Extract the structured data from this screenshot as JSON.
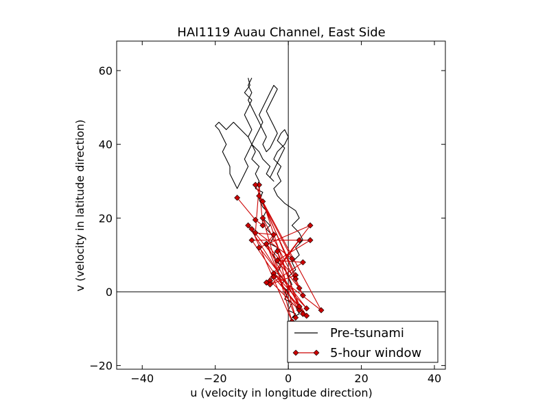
{
  "chart_data": {
    "type": "line",
    "title": "HAI1119   Auau Channel, East Side",
    "xlabel": "u (velocity in longitude direction)",
    "ylabel": "v (velocity in latitude direction)",
    "xlim": [
      -47,
      43
    ],
    "ylim": [
      -21,
      68
    ],
    "xticks": [
      -40,
      -20,
      0,
      20,
      40
    ],
    "yticks": [
      -20,
      0,
      20,
      40,
      60
    ],
    "grid": false,
    "reference_lines": {
      "x": 0,
      "y": 0
    },
    "legend": {
      "position": "lower-right",
      "entries": [
        "Pre-tsunami",
        "5-hour window"
      ]
    },
    "series": [
      {
        "name": "Pre-tsunami",
        "color": "#000000",
        "marker": "none",
        "x": [
          -11,
          -10.5,
          -12,
          -10,
          -11,
          -12,
          -11,
          -10,
          -11,
          -10,
          -9,
          -10,
          -8,
          -9,
          -8,
          -9,
          -7,
          -8,
          -7,
          -6,
          -7,
          -5,
          -6,
          -4,
          -5,
          -3,
          -4,
          -3,
          -2,
          -3,
          -1,
          -2,
          0,
          -1,
          1,
          0,
          2,
          1,
          3,
          2,
          1,
          0,
          -1,
          1,
          0,
          2,
          1,
          3,
          2,
          4,
          3,
          1,
          3,
          2,
          -1,
          -3,
          -4,
          -2,
          -3,
          -2,
          -4,
          -3,
          -1,
          0,
          -1,
          -2,
          -3,
          -1,
          -2,
          -3,
          -4,
          -5,
          -4,
          -6,
          -5,
          -7,
          -8,
          -10,
          -11,
          -12,
          -13,
          -14,
          -15,
          -16,
          -17,
          -18,
          -19,
          -20,
          -19,
          -18,
          -17,
          -18,
          -17,
          -16,
          -16,
          -15,
          -14,
          -13,
          -12,
          -11,
          -12,
          -11,
          -10,
          -9,
          -8,
          -7,
          -8,
          -7,
          -6,
          -5,
          -4,
          -3,
          -4,
          -5,
          -6,
          -5,
          -4,
          -3,
          -4,
          -5,
          -6,
          -7,
          -6,
          -7,
          -8,
          -9,
          -10,
          -11,
          -10,
          -11,
          -10
        ],
        "y": [
          58,
          56,
          54,
          52,
          50,
          48,
          46,
          44,
          42,
          40,
          38,
          36,
          34,
          32,
          30,
          28,
          27,
          25,
          23,
          22,
          20,
          18,
          17,
          15,
          13,
          12,
          10,
          8,
          7,
          5,
          3,
          2,
          0,
          -2,
          -3,
          -5,
          -6,
          -7,
          -6,
          -4,
          -3,
          -2,
          0,
          2,
          4,
          6,
          8,
          10,
          12,
          14,
          16,
          18,
          20,
          22,
          24,
          26,
          28,
          30,
          32,
          34,
          36,
          38,
          40,
          42,
          44,
          43,
          41,
          39,
          37,
          35,
          33,
          31,
          30,
          32,
          34,
          36,
          38,
          40,
          42,
          43,
          44,
          45,
          46,
          45,
          44,
          45,
          46,
          45,
          44,
          42,
          40,
          38,
          36,
          34,
          32,
          30,
          28,
          30,
          32,
          34,
          36,
          38,
          40,
          42,
          44,
          46,
          48,
          50,
          52,
          54,
          56,
          55,
          53,
          51,
          49,
          47,
          45,
          43,
          41,
          39,
          38,
          40,
          42,
          44,
          46,
          48,
          50,
          52,
          54,
          56,
          58
        ]
      },
      {
        "name": "5-hour window",
        "color": "#cc0000",
        "marker": "diamond",
        "x": [
          -14,
          -9,
          -7,
          -8,
          -9,
          -4,
          -6,
          2,
          -3,
          4,
          -5,
          3,
          -6,
          6,
          -8,
          5,
          -4,
          9,
          -7,
          3,
          -10,
          6,
          -3,
          4,
          -5,
          2,
          -8,
          1,
          -11,
          5,
          -4,
          3,
          -6,
          2,
          -9,
          4,
          -7,
          1,
          -10,
          3
        ],
        "y": [
          25.5,
          19.5,
          18,
          29,
          16,
          15.5,
          13,
          -7,
          11,
          -6,
          3,
          14,
          2.5,
          18,
          12,
          -4.5,
          5,
          -5,
          24.5,
          -5,
          14,
          14,
          8.5,
          8,
          2,
          4.5,
          26,
          9,
          18,
          -6.5,
          4,
          -4,
          13,
          3.5,
          29,
          -1,
          20,
          -8,
          17,
          1
        ]
      }
    ]
  }
}
